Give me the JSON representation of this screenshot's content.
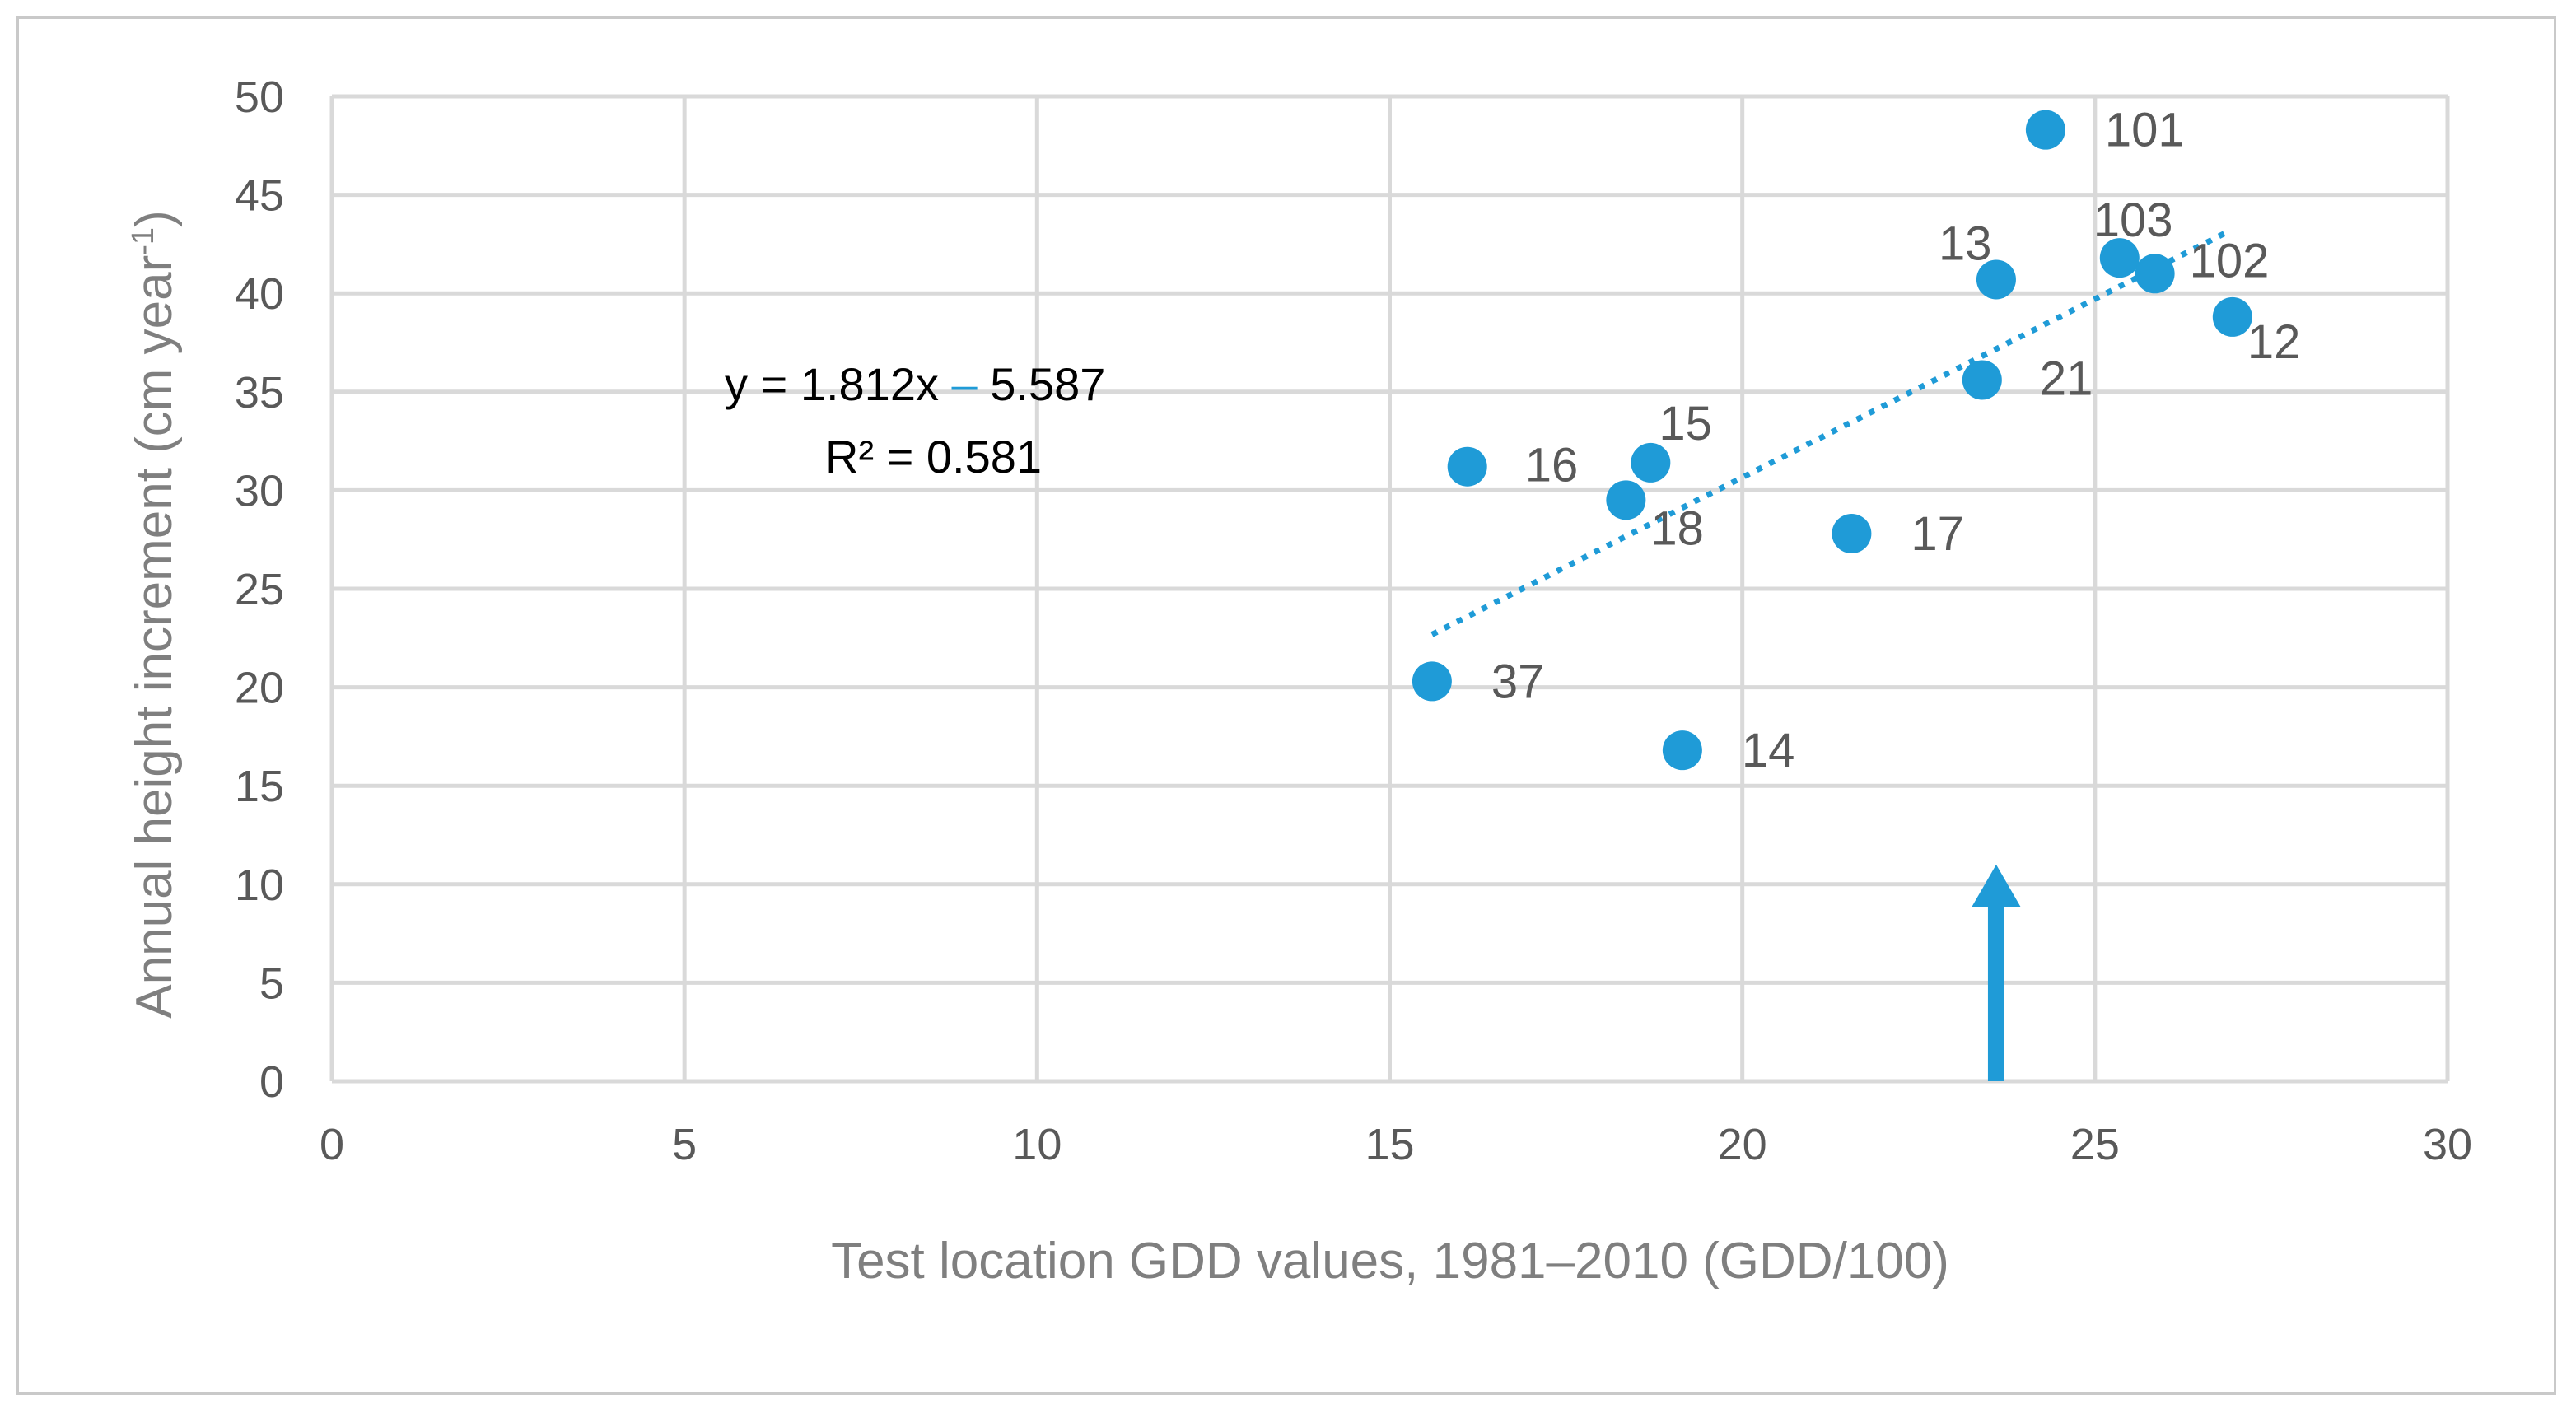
{
  "chart_data": {
    "type": "scatter",
    "title": "",
    "xlabel": "Test location GDD values, 1981–2010 (GDD/100)",
    "ylabel_main": "Annual height increment (cm year",
    "ylabel_sup": "-1",
    "ylabel_close": ")",
    "xlim": [
      0,
      30
    ],
    "ylim": [
      0,
      50
    ],
    "xticks": [
      "0",
      "5",
      "10",
      "15",
      "20",
      "25",
      "30"
    ],
    "yticks": [
      "0",
      "5",
      "10",
      "15",
      "20",
      "25",
      "30",
      "35",
      "40",
      "45",
      "50"
    ],
    "grid": true,
    "colors": {
      "marker": "#1f9bd7",
      "grid": "#d9d9d9",
      "arrow": "#1f9bd7"
    },
    "points": [
      {
        "label": "101",
        "x": 24.3,
        "y": 48.3
      },
      {
        "label": "103",
        "x": 25.35,
        "y": 41.8
      },
      {
        "label": "102",
        "x": 25.85,
        "y": 41.0
      },
      {
        "label": "13",
        "x": 23.6,
        "y": 40.7
      },
      {
        "label": "12",
        "x": 26.95,
        "y": 38.8
      },
      {
        "label": "21",
        "x": 23.4,
        "y": 35.6
      },
      {
        "label": "15",
        "x": 18.7,
        "y": 31.4
      },
      {
        "label": "16",
        "x": 16.1,
        "y": 31.2
      },
      {
        "label": "18",
        "x": 18.35,
        "y": 29.5
      },
      {
        "label": "17",
        "x": 21.55,
        "y": 27.8
      },
      {
        "label": "37",
        "x": 15.6,
        "y": 20.3
      },
      {
        "label": "14",
        "x": 19.15,
        "y": 16.8
      }
    ],
    "trendline": {
      "style": "dotted",
      "x_start": 15.6,
      "x_end": 26.9,
      "slope": 1.812,
      "intercept": -5.587,
      "equation_left": "y = 1.812x ",
      "equation_op": "–",
      "equation_right": " 5.587",
      "r2_label": "R² = 0.581"
    },
    "arrow": {
      "x": 23.6,
      "y_from": 0,
      "y_to": 11
    }
  }
}
